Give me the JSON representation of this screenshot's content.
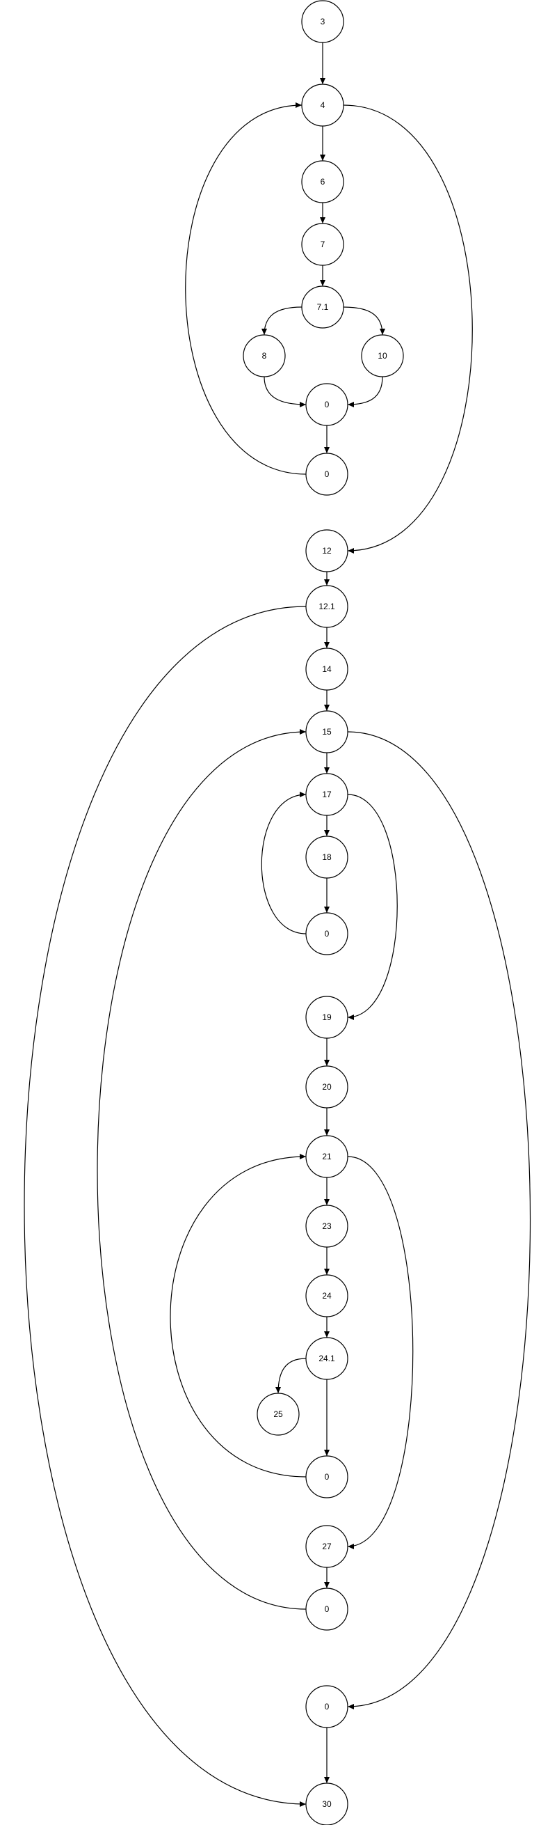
{
  "diagram": {
    "type": "control-flow-graph",
    "stroke_color": "#000000",
    "fill_color": "#ffffff",
    "nodes": [
      {
        "id": "n3",
        "label": "3"
      },
      {
        "id": "n4",
        "label": "4"
      },
      {
        "id": "n6",
        "label": "6"
      },
      {
        "id": "n7",
        "label": "7"
      },
      {
        "id": "n7_1",
        "label": "7.1"
      },
      {
        "id": "n8",
        "label": "8"
      },
      {
        "id": "n10",
        "label": "10"
      },
      {
        "id": "j1",
        "label": "0"
      },
      {
        "id": "j2",
        "label": "0"
      },
      {
        "id": "n12",
        "label": "12"
      },
      {
        "id": "n12_1",
        "label": "12.1"
      },
      {
        "id": "n14",
        "label": "14"
      },
      {
        "id": "n15",
        "label": "15"
      },
      {
        "id": "n17",
        "label": "17"
      },
      {
        "id": "n18",
        "label": "18"
      },
      {
        "id": "j3",
        "label": "0"
      },
      {
        "id": "n19",
        "label": "19"
      },
      {
        "id": "n20",
        "label": "20"
      },
      {
        "id": "n21",
        "label": "21"
      },
      {
        "id": "n23",
        "label": "23"
      },
      {
        "id": "n24",
        "label": "24"
      },
      {
        "id": "n24_1",
        "label": "24.1"
      },
      {
        "id": "n25",
        "label": "25"
      },
      {
        "id": "j4",
        "label": "0"
      },
      {
        "id": "n27",
        "label": "27"
      },
      {
        "id": "j5",
        "label": "0"
      },
      {
        "id": "j6",
        "label": "0"
      },
      {
        "id": "n30",
        "label": "30"
      }
    ],
    "edges": [
      {
        "from": "n3",
        "to": "n4"
      },
      {
        "from": "n4",
        "to": "n6"
      },
      {
        "from": "n6",
        "to": "n7"
      },
      {
        "from": "n7",
        "to": "n7_1"
      },
      {
        "from": "n7_1",
        "to": "n8"
      },
      {
        "from": "n7_1",
        "to": "n10"
      },
      {
        "from": "n8",
        "to": "j1"
      },
      {
        "from": "n10",
        "to": "j1"
      },
      {
        "from": "j1",
        "to": "j2"
      },
      {
        "from": "j2",
        "to": "n4"
      },
      {
        "from": "n4",
        "to": "n12"
      },
      {
        "from": "n12",
        "to": "n12_1"
      },
      {
        "from": "n12_1",
        "to": "n14"
      },
      {
        "from": "n12_1",
        "to": "n30"
      },
      {
        "from": "n14",
        "to": "n15"
      },
      {
        "from": "n15",
        "to": "n17"
      },
      {
        "from": "n15",
        "to": "j6"
      },
      {
        "from": "n17",
        "to": "n18"
      },
      {
        "from": "n18",
        "to": "j3"
      },
      {
        "from": "j3",
        "to": "n17"
      },
      {
        "from": "n17",
        "to": "n19"
      },
      {
        "from": "n19",
        "to": "n20"
      },
      {
        "from": "n20",
        "to": "n21"
      },
      {
        "from": "n21",
        "to": "n23"
      },
      {
        "from": "n21",
        "to": "n27"
      },
      {
        "from": "n23",
        "to": "n24"
      },
      {
        "from": "n24",
        "to": "n24_1"
      },
      {
        "from": "n24_1",
        "to": "n25"
      },
      {
        "from": "n24_1",
        "to": "j4"
      },
      {
        "from": "j4",
        "to": "n21"
      },
      {
        "from": "n27",
        "to": "j5"
      },
      {
        "from": "j5",
        "to": "n15"
      },
      {
        "from": "j6",
        "to": "n30"
      }
    ]
  }
}
